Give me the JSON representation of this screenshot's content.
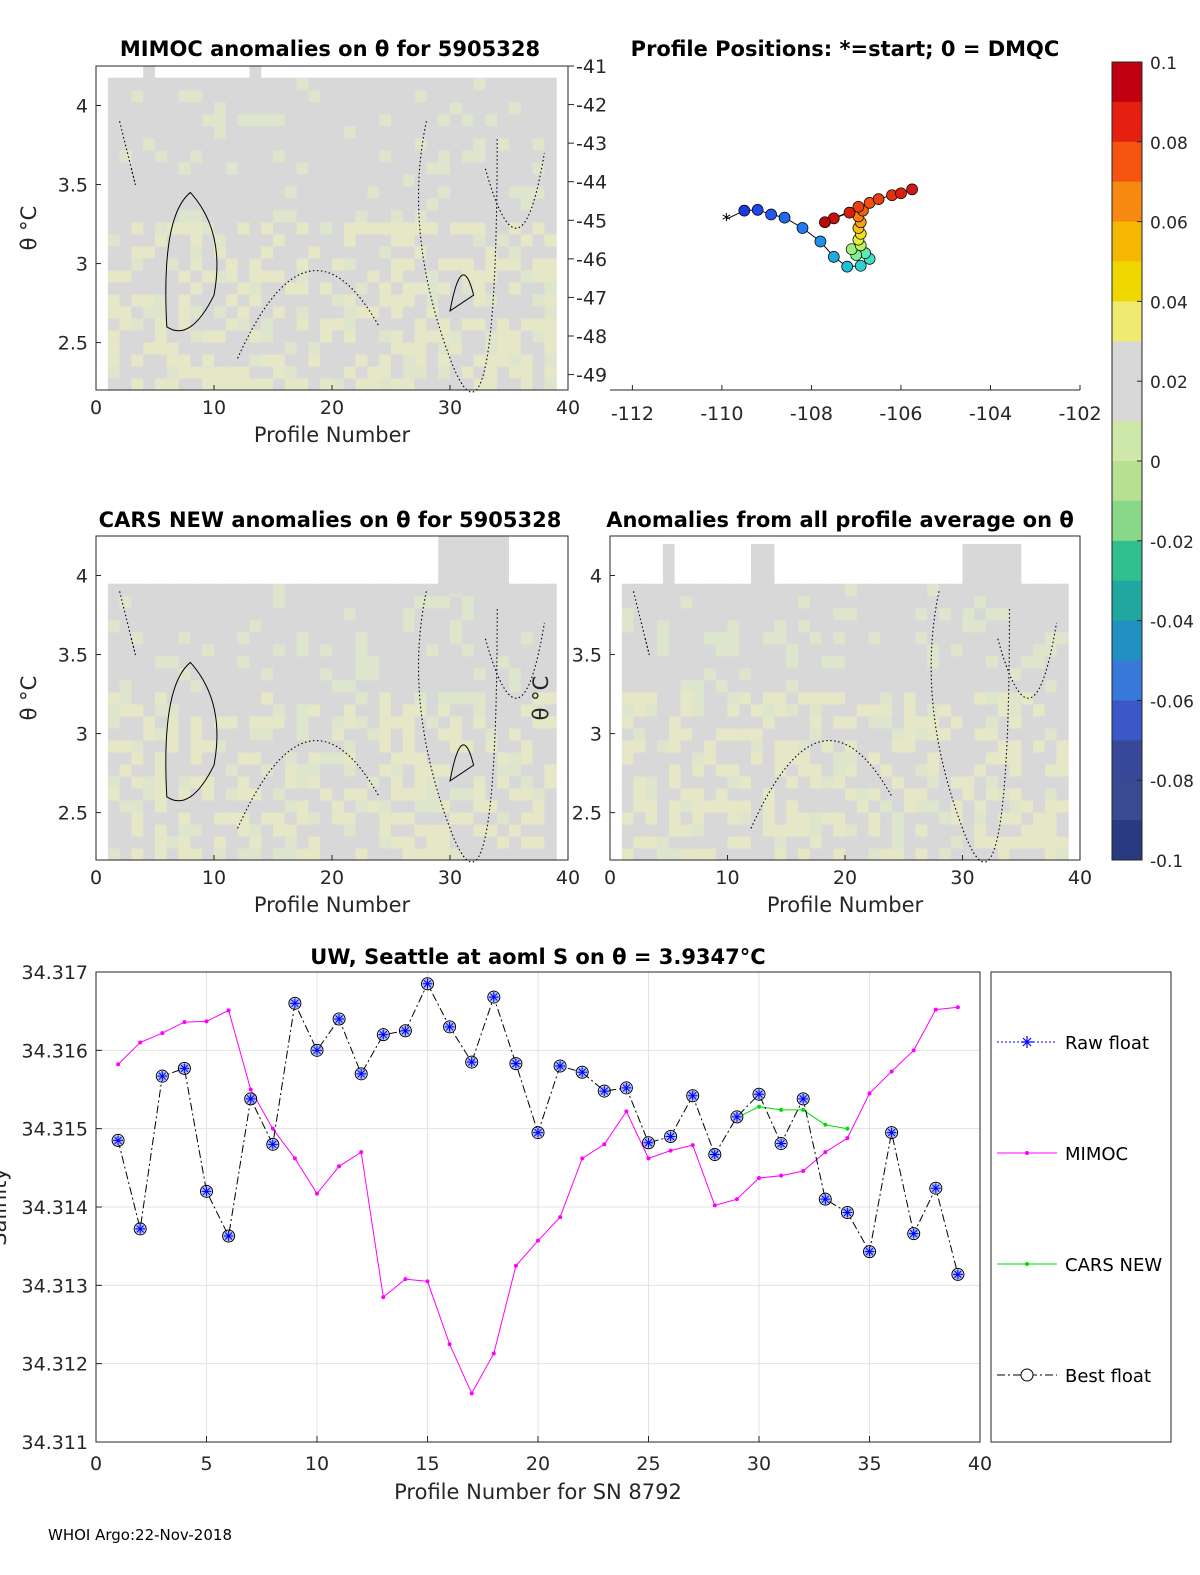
{
  "colors": {
    "field": "#d8d8d8",
    "field_warm": "#e6e7c6",
    "field_cool": "#dde6cc",
    "mimoc": "#ff00ff",
    "cars": "#00dd00",
    "raw": "#0000ff",
    "best": "#000000"
  },
  "colorbar": {
    "tick_labels": [
      "0.1",
      "0.08",
      "0.06",
      "0.04",
      "0.02",
      "0",
      "-0.02",
      "-0.04",
      "-0.06",
      "-0.08",
      "-0.1"
    ],
    "colors": [
      "#c00010",
      "#e52010",
      "#f55410",
      "#f78810",
      "#f5b800",
      "#eed800",
      "#f0ea70",
      "#d8d8d8",
      "#d8d8d8",
      "#cde8a8",
      "#b7e090",
      "#88d888",
      "#30c090",
      "#20a8a0",
      "#2090c0",
      "#3878d8",
      "#3c58c8",
      "#384898",
      "#3a4a90",
      "#2a3a80"
    ],
    "range": [
      -0.1,
      0.1
    ]
  },
  "panels": [
    {
      "id": "mimoc",
      "title": "MIMOC anomalies on θ  for 5905328",
      "xlabel": "Profile Number",
      "ylabel": "θ °C",
      "xlim": [
        0,
        40
      ],
      "ylim": [
        2.2,
        4.25
      ],
      "x_ticks": [
        "0",
        "10",
        "20",
        "30",
        "40"
      ],
      "y_ticks": [
        "2.5",
        "3",
        "3.5",
        "4"
      ]
    },
    {
      "id": "cars",
      "title": "CARS NEW anomalies on θ for 5905328",
      "xlabel": "Profile Number",
      "ylabel": "θ °C",
      "xlim": [
        0,
        40
      ],
      "ylim": [
        2.2,
        4.25
      ],
      "x_ticks": [
        "0",
        "10",
        "20",
        "30",
        "40"
      ],
      "y_ticks": [
        "2.5",
        "3",
        "3.5",
        "4"
      ]
    },
    {
      "id": "allavg",
      "title": "Anomalies from all profile average on θ",
      "xlabel": "Profile Number",
      "ylabel": "θ °C",
      "xlim": [
        0,
        40
      ],
      "ylim": [
        2.2,
        4.25
      ],
      "x_ticks": [
        "0",
        "10",
        "20",
        "30",
        "40"
      ],
      "y_ticks": [
        "2.5",
        "3",
        "3.5",
        "4"
      ]
    }
  ],
  "map": {
    "title": "Profile Positions: *=start; 0 = DMQC",
    "xlim": [
      -112.5,
      -102
    ],
    "ylim": [
      -49.4,
      -41
    ],
    "x_ticks": [
      "-112",
      "-110",
      "-108",
      "-106",
      "-104",
      "-102"
    ],
    "y_ticks": [
      "-41",
      "-42",
      "-43",
      "-44",
      "-45",
      "-46",
      "-47",
      "-48",
      "-49"
    ],
    "start_marker": "*",
    "track": [
      [
        -109.9,
        -44.97
      ],
      [
        -109.5,
        -44.75
      ],
      [
        -109.2,
        -44.73
      ],
      [
        -108.9,
        -44.85
      ],
      [
        -108.6,
        -44.93
      ],
      [
        -108.2,
        -45.2
      ],
      [
        -107.8,
        -45.55
      ],
      [
        -107.5,
        -45.95
      ],
      [
        -107.2,
        -46.2
      ],
      [
        -106.9,
        -46.18
      ],
      [
        -106.7,
        -46.0
      ],
      [
        -106.8,
        -45.85
      ],
      [
        -107.0,
        -45.9
      ],
      [
        -107.1,
        -45.75
      ],
      [
        -106.9,
        -45.65
      ],
      [
        -106.95,
        -45.5
      ],
      [
        -106.9,
        -45.35
      ],
      [
        -106.95,
        -45.2
      ],
      [
        -106.9,
        -45.05
      ],
      [
        -106.95,
        -44.9
      ],
      [
        -106.85,
        -44.75
      ],
      [
        -106.95,
        -44.65
      ],
      [
        -107.15,
        -44.8
      ],
      [
        -107.5,
        -44.95
      ],
      [
        -107.7,
        -45.05
      ],
      [
        -106.7,
        -44.55
      ],
      [
        -106.5,
        -44.45
      ],
      [
        -106.2,
        -44.35
      ],
      [
        -106.0,
        -44.3
      ],
      [
        -105.75,
        -44.2
      ]
    ]
  },
  "chart_data": {
    "type": "line",
    "title": "UW, Seattle at aoml S on θ = 3.9347°C",
    "xlabel": "Profile Number for SN 8792",
    "ylabel": "Salinity",
    "xlim": [
      0,
      40
    ],
    "ylim": [
      34.311,
      34.317
    ],
    "x_ticks": [
      "0",
      "5",
      "10",
      "15",
      "20",
      "25",
      "30",
      "35",
      "40"
    ],
    "y_ticks": [
      "34.311",
      "34.312",
      "34.313",
      "34.314",
      "34.315",
      "34.316",
      "34.317"
    ],
    "grid": true,
    "legend_position": "right",
    "series": [
      {
        "name": "Raw float",
        "x": [
          1,
          2,
          3,
          4,
          5,
          6,
          7,
          8,
          9,
          10,
          11,
          12,
          13,
          14,
          15,
          16,
          17,
          18,
          19,
          20,
          21,
          22,
          23,
          24,
          25,
          26,
          27,
          28,
          29,
          30,
          31,
          32,
          33,
          34,
          35,
          36,
          37,
          38,
          39
        ],
        "values": [
          34.31485,
          34.31372,
          34.31567,
          34.31577,
          34.3142,
          34.31363,
          34.31538,
          34.3148,
          34.3166,
          34.316,
          34.3164,
          34.3157,
          34.3162,
          34.31625,
          34.31685,
          34.3163,
          34.31585,
          34.31668,
          34.31583,
          34.31495,
          34.3158,
          34.31572,
          34.31548,
          34.31552,
          34.31482,
          34.3149,
          34.31542,
          34.31467,
          34.31515,
          34.31544,
          34.31481,
          34.31538,
          34.3141,
          34.31393,
          34.31343,
          34.31495,
          34.31366,
          34.31424,
          34.31314
        ]
      },
      {
        "name": "MIMOC",
        "x": [
          1,
          2,
          3,
          4,
          5,
          6,
          7,
          8,
          9,
          10,
          11,
          12,
          13,
          14,
          15,
          16,
          17,
          18,
          19,
          20,
          21,
          22,
          23,
          24,
          25,
          26,
          27,
          28,
          29,
          30,
          31,
          32,
          33,
          34,
          35,
          36,
          37,
          38,
          39
        ],
        "values": [
          34.31582,
          34.3161,
          34.31622,
          34.31636,
          34.31637,
          34.31651,
          34.3155,
          34.315,
          34.31462,
          34.31417,
          34.31452,
          34.3147,
          34.31285,
          34.31308,
          34.31305,
          34.31225,
          34.31162,
          34.31213,
          34.31325,
          34.31357,
          34.31387,
          34.31462,
          34.3148,
          34.31522,
          34.31462,
          34.31472,
          34.31479,
          34.31402,
          34.3141,
          34.31437,
          34.3144,
          34.31446,
          34.3147,
          34.31488,
          34.31545,
          34.31573,
          34.316,
          34.31652,
          34.31655
        ]
      },
      {
        "name": "CARS NEW",
        "x": [
          29,
          30,
          31,
          32,
          33,
          34
        ],
        "values": [
          34.31514,
          34.31528,
          34.31524,
          34.31524,
          34.31505,
          34.315
        ]
      },
      {
        "name": "Best float",
        "x": [
          1,
          2,
          3,
          4,
          5,
          6,
          7,
          8,
          9,
          10,
          11,
          12,
          13,
          14,
          15,
          16,
          17,
          18,
          19,
          20,
          21,
          22,
          23,
          24,
          25,
          26,
          27,
          28,
          29,
          30,
          31,
          32,
          33,
          34,
          35,
          36,
          37,
          38,
          39
        ],
        "values": [
          34.31485,
          34.31372,
          34.31567,
          34.31577,
          34.3142,
          34.31363,
          34.31538,
          34.3148,
          34.3166,
          34.316,
          34.3164,
          34.3157,
          34.3162,
          34.31625,
          34.31685,
          34.3163,
          34.31585,
          34.31668,
          34.31583,
          34.31495,
          34.3158,
          34.31572,
          34.31548,
          34.31552,
          34.31482,
          34.3149,
          34.31542,
          34.31467,
          34.31515,
          34.31544,
          34.31481,
          34.31538,
          34.3141,
          34.31393,
          34.31343,
          34.31495,
          34.31366,
          34.31424,
          34.31314
        ]
      }
    ]
  },
  "footer": "WHOI Argo:22-Nov-2018"
}
